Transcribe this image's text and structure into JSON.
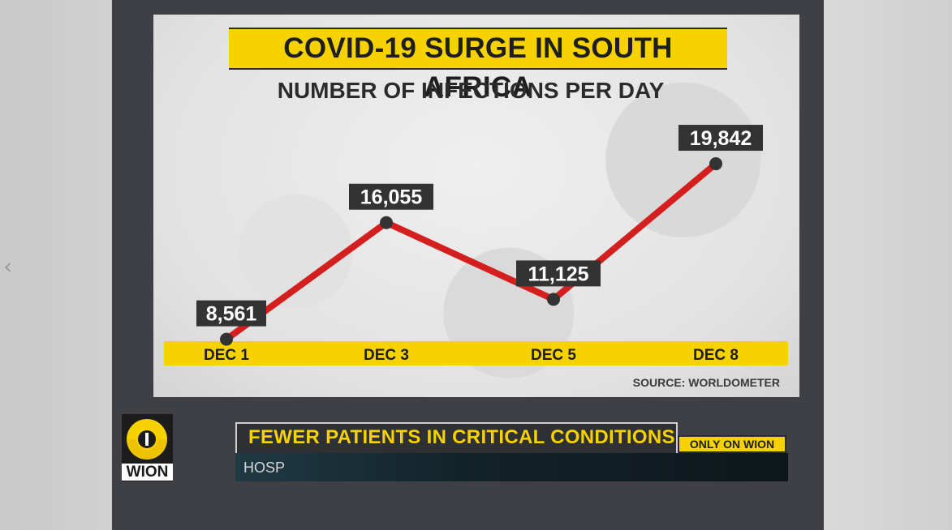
{
  "chart_data": {
    "type": "line",
    "title": "COVID-19 SURGE IN SOUTH AFRICA",
    "subtitle": "NUMBER OF INFECTIONS PER DAY",
    "categories": [
      "DEC 1",
      "DEC 3",
      "DEC 5",
      "DEC 8"
    ],
    "series": [
      {
        "values": [
          8561,
          16055,
          11125,
          19842
        ]
      }
    ],
    "data_labels": [
      "8,561",
      "16,055",
      "11,125",
      "19,842"
    ],
    "ylim": [
      0,
      25000
    ],
    "grid": false,
    "source": "SOURCE: WORLDOMETER",
    "colors": {
      "line": "#d41f1f",
      "marker": "#333333",
      "label_bg": "#333333",
      "label_text": "#ffffff",
      "axis_band": "#f5d200"
    }
  },
  "ticker": {
    "headline": "FEWER PATIENTS IN CRITICAL CONDITIONS",
    "tag": "ONLY ON WION",
    "subline": "HOSP"
  },
  "logo": {
    "text": "WION"
  },
  "icons": {
    "prev": "chevron-left-icon"
  }
}
